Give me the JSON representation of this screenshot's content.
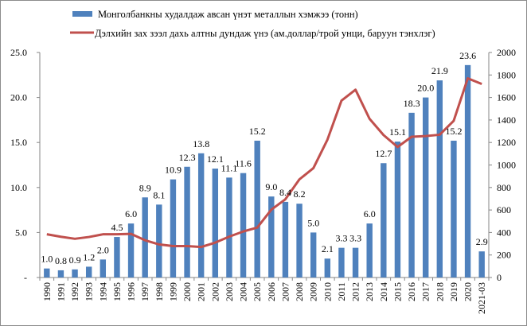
{
  "chart_data": {
    "type": "bar",
    "title": "",
    "legend": {
      "position": "top",
      "entries": [
        {
          "name": "Монголбанкны худалдаж авсан үнэт металлын хэмжээ (тонн)",
          "kind": "bar",
          "color": "#4f81bd"
        },
        {
          "name": "Дэлхийн зах зээл дахь алтны дундаж үнэ (ам.доллар/трой унци, баруун тэнхлэг)",
          "kind": "line",
          "color": "#c0504d"
        }
      ]
    },
    "categories": [
      "1990",
      "1991",
      "1992",
      "1993",
      "1994",
      "1995",
      "1996",
      "1997",
      "1998",
      "1999",
      "2000",
      "2001",
      "2002",
      "2003",
      "2004",
      "2005",
      "2006",
      "2007",
      "2008",
      "2009",
      "2010",
      "2011",
      "2012",
      "2013",
      "2014",
      "2015",
      "2016",
      "2017",
      "2018",
      "2019",
      "2020",
      "2021-03"
    ],
    "series": [
      {
        "name": "Монголбанкны худалдаж авсан үнэт металлын хэмжээ (тонн)",
        "type": "bar",
        "axis": "left",
        "color": "#4f81bd",
        "values": [
          1.0,
          0.8,
          0.9,
          1.2,
          2.0,
          4.5,
          6.0,
          8.9,
          8.1,
          10.9,
          12.3,
          13.8,
          12.1,
          11.1,
          11.6,
          15.2,
          9.0,
          8.4,
          8.2,
          5.0,
          2.1,
          3.3,
          3.3,
          6.0,
          12.7,
          15.1,
          18.3,
          20.0,
          21.9,
          15.2,
          23.6,
          2.9
        ],
        "labels": [
          "1.0",
          "0.8",
          "0.9",
          "1.2",
          "2.0",
          "4.5",
          "6.0",
          "8.9",
          "8.1",
          "10.9",
          "12.3",
          "13.8",
          "12.1",
          "11.1",
          "11.6",
          "15.2",
          "9.0",
          "8.4",
          "8.2",
          "5.0",
          "2.1",
          "3.3",
          "3.3",
          "6.0",
          "12.7",
          "15.1",
          "18.3",
          "20.0",
          "21.9",
          "15.2",
          "23.6",
          "2.9"
        ]
      },
      {
        "name": "Дэлхийн зах зээл дахь алтны дундаж үнэ (ам.доллар/трой унци, баруун тэнхлэг)",
        "type": "line",
        "axis": "right",
        "color": "#c0504d",
        "values": [
          384,
          362,
          344,
          360,
          384,
          384,
          388,
          331,
          294,
          279,
          279,
          271,
          310,
          363,
          409,
          444,
          603,
          695,
          872,
          972,
          1225,
          1572,
          1669,
          1411,
          1266,
          1160,
          1251,
          1257,
          1269,
          1393,
          1770,
          1720
        ]
      }
    ],
    "left_axis": {
      "ylim": [
        0,
        25
      ],
      "ticks": [
        "-",
        "5.0",
        "10.0",
        "15.0",
        "20.0",
        "25.0"
      ],
      "tick_values": [
        0,
        5,
        10,
        15,
        20,
        25
      ]
    },
    "right_axis": {
      "ylim": [
        0,
        2000
      ],
      "ticks": [
        "0",
        "200",
        "400",
        "600",
        "800",
        "1000",
        "1200",
        "1400",
        "1600",
        "1800",
        "2000"
      ],
      "tick_values": [
        0,
        200,
        400,
        600,
        800,
        1000,
        1200,
        1400,
        1600,
        1800,
        2000
      ]
    },
    "xlabel": "",
    "ylabel": "",
    "y2label": "",
    "grid": false
  }
}
